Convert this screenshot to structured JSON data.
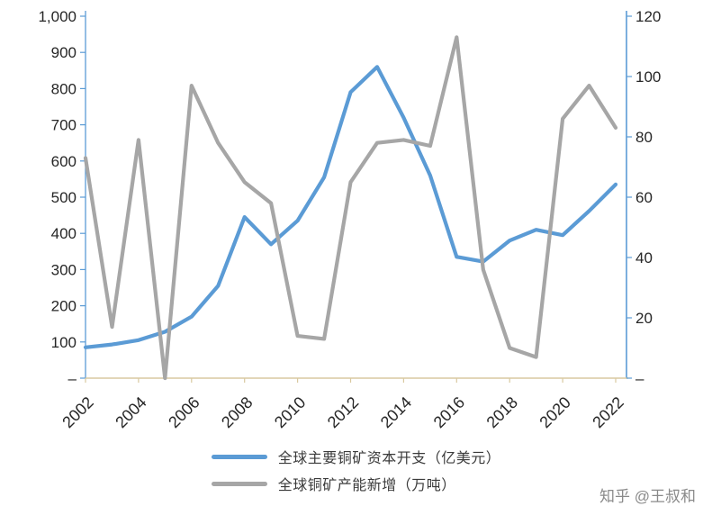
{
  "chart_data": {
    "type": "line",
    "title": "",
    "x": [
      2002,
      2003,
      2004,
      2005,
      2006,
      2007,
      2008,
      2009,
      2010,
      2011,
      2012,
      2013,
      2014,
      2015,
      2016,
      2017,
      2018,
      2019,
      2020,
      2021,
      2022
    ],
    "x_tick_labels": [
      "2002",
      "2004",
      "2006",
      "2008",
      "2010",
      "2012",
      "2014",
      "2016",
      "2018",
      "2020",
      "2022"
    ],
    "series": [
      {
        "name": "全球主要铜矿资本开支（亿美元）",
        "axis": "left",
        "color": "#5b9bd5",
        "values": [
          85,
          93,
          105,
          128,
          170,
          255,
          445,
          370,
          435,
          555,
          790,
          860,
          720,
          560,
          335,
          322,
          380,
          410,
          395,
          462,
          535
        ]
      },
      {
        "name": "全球铜矿产能新增（万吨）",
        "axis": "right",
        "color": "#a6a6a6",
        "values": [
          73,
          17,
          79,
          0,
          97,
          78,
          65,
          58,
          14,
          13,
          65,
          78,
          79,
          77,
          113,
          36,
          10,
          7,
          86,
          97,
          83
        ]
      }
    ],
    "left_axis": {
      "min": 0,
      "max": 1000,
      "tick_step": 100,
      "tick_labels": [
        "1,000",
        "900",
        "800",
        "700",
        "600",
        "500",
        "400",
        "300",
        "200",
        "100",
        "–"
      ]
    },
    "right_axis": {
      "min": 0,
      "max": 120,
      "tick_step": 20,
      "tick_labels": [
        "120",
        "100",
        "80",
        "60",
        "40",
        "20",
        "–"
      ]
    },
    "grid": false,
    "legend_position": "bottom"
  },
  "legend": {
    "items": [
      {
        "label": "全球主要铜矿资本开支（亿美元）",
        "color": "#5b9bd5"
      },
      {
        "label": "全球铜矿产能新增（万吨）",
        "color": "#a6a6a6"
      }
    ]
  },
  "watermark": {
    "text": "知乎 @王叔和"
  },
  "style": {
    "background": "#ffffff",
    "axis_line_color": "#5b9bd5",
    "x_axis_line_color": "#d9c9a0",
    "tick_text_color": "#262626",
    "legend_text_color": "#3b3b3b",
    "watermark_color": "#8a8a8a"
  }
}
